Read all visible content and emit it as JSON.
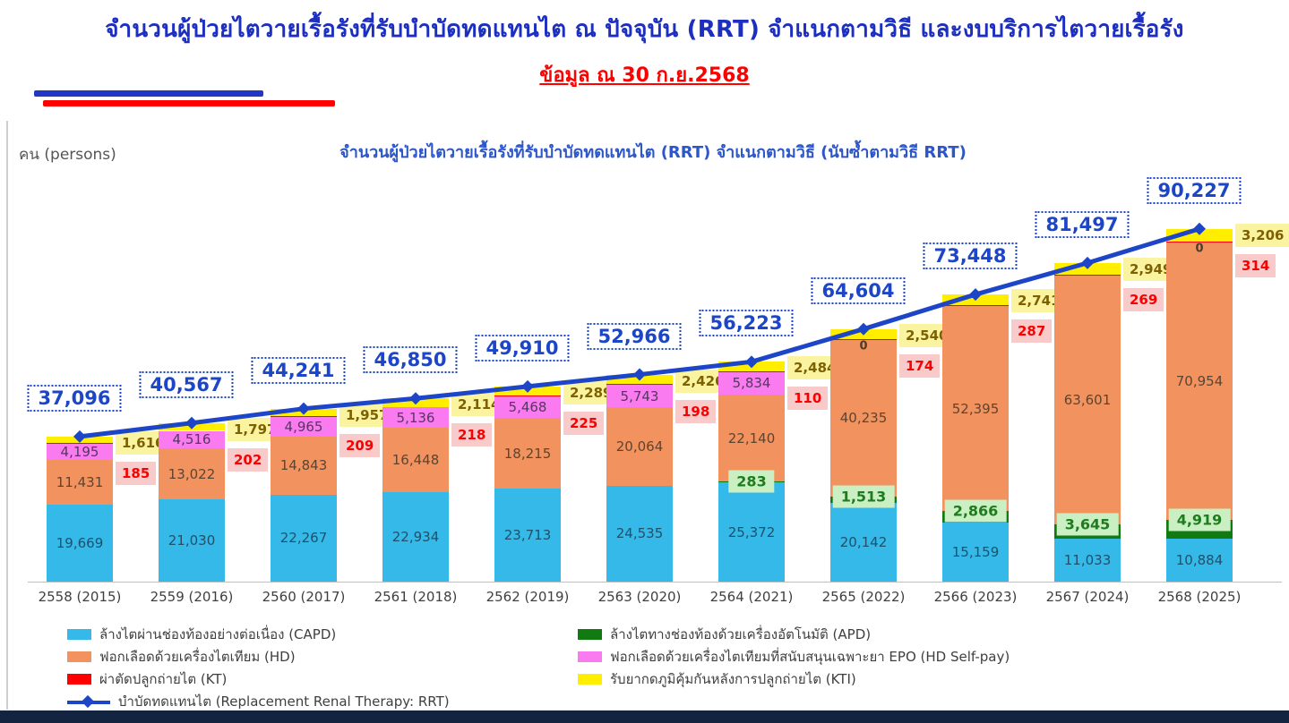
{
  "page": {
    "main_title": "จำนวนผู้ป่วยไตวายเรื้อรังที่รับบำบัดทดแทนไต ณ ปัจจุบัน (RRT) จำแนกตามวิธี และงบบริการไตวายเรื้อรัง",
    "subtitle": "ข้อมูล ณ 30 ก.ย.2568"
  },
  "chart_data": {
    "type": "stacked-bar-with-line",
    "title": "จำนวนผู้ป่วยไตวายเรื้อรังที่รับบำบัดทดแทนไต (RRT) จำแนกตามวิธี (นับซ้ำตามวิธี RRT)",
    "y_axis_unit": "คน (persons)",
    "grid": false,
    "legend_position": "bottom-two-columns",
    "ylim": [
      0,
      92000
    ],
    "categories": [
      "2558 (2015)",
      "2559 (2016)",
      "2560 (2017)",
      "2561 (2018)",
      "2562 (2019)",
      "2563 (2020)",
      "2564 (2021)",
      "2565 (2022)",
      "2566 (2023)",
      "2567 (2024)",
      "2568 (2025)"
    ],
    "series": [
      {
        "key": "capd",
        "name": "ล้างไตผ่านช่องท้องอย่างต่อเนื่อง  (CAPD)",
        "color": "#35b9e9",
        "values": [
          19669,
          21030,
          22267,
          22934,
          23713,
          24535,
          25372,
          20142,
          15159,
          11033,
          10884
        ]
      },
      {
        "key": "apd",
        "name": "ล้างไตทางช่องท้องด้วยเครื่องอัตโนมัติ  (APD)",
        "color": "#117b11",
        "values": [
          0,
          0,
          0,
          0,
          0,
          0,
          283,
          1513,
          2866,
          3645,
          4919
        ]
      },
      {
        "key": "hd",
        "name": "ฟอกเลือดด้วยเครื่องไตเทียม  (HD)",
        "color": "#f2935f",
        "values": [
          11431,
          13022,
          14843,
          16448,
          18215,
          20064,
          22140,
          40235,
          52395,
          63601,
          70954
        ]
      },
      {
        "key": "epo",
        "name": "ฟอกเลือดด้วยเครื่องไตเทียมที่สนับสนุนเฉพาะยา  EPO (HD Self-pay)",
        "color": "#fa7af0",
        "values": [
          4195,
          4516,
          4965,
          5136,
          5468,
          5743,
          5834,
          0,
          0,
          0,
          0
        ]
      },
      {
        "key": "kt",
        "name": "ผ่าตัดปลูกถ่ายไต  (KT)",
        "color": "#fe0000",
        "values": [
          185,
          202,
          209,
          218,
          225,
          198,
          110,
          174,
          287,
          269,
          314
        ]
      },
      {
        "key": "kti",
        "name": "รับยากดภูมิคุ้มกันหลังการปลูกถ่ายไต  (KTI)",
        "color": "#ffee00",
        "values": [
          1616,
          1797,
          1957,
          2114,
          2289,
          2426,
          2484,
          2540,
          2741,
          2949,
          3206
        ]
      }
    ],
    "line_series": {
      "key": "rrt",
      "name": "บำบัดทดแทนไต  (Replacement Renal Therapy: RRT)",
      "color": "#1c45c8",
      "values": [
        37096,
        40567,
        44241,
        46850,
        49910,
        52966,
        56223,
        64604,
        73448,
        81497,
        90227
      ]
    },
    "epo_zero_shown": [
      false,
      false,
      false,
      false,
      false,
      false,
      false,
      true,
      false,
      false,
      true
    ],
    "epo_zero_text": "0",
    "legend": {
      "left_column": [
        "capd",
        "hd",
        "kt",
        "rrt"
      ],
      "right_column": [
        "apd",
        "epo",
        "kti"
      ]
    },
    "label_box_colors": {
      "kti_box_bg": "#faf3a0",
      "kti_box_text": "#7e6000",
      "kt_box_bg": "#f8caca",
      "kt_box_text": "#fb0000",
      "apd_box_bg": "#c9efc2",
      "apd_box_text": "#1e7c1e",
      "total_text": "#1c45c8"
    }
  }
}
